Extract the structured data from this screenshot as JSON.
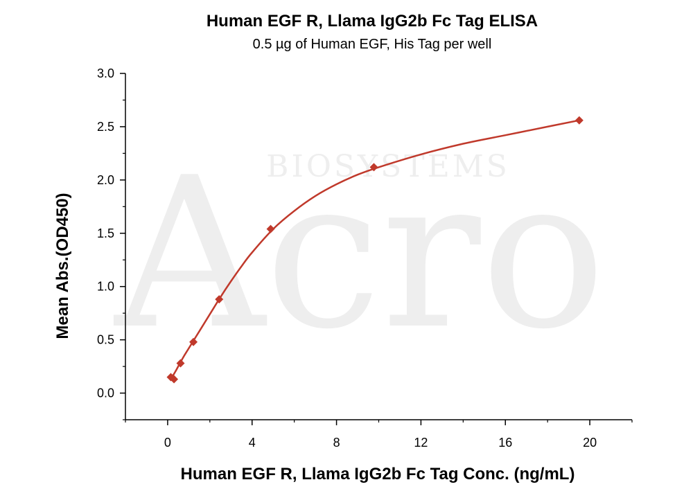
{
  "chart_data": {
    "type": "scatter",
    "title": "Human EGF R, Llama IgG2b Fc Tag ELISA",
    "subtitle": "0.5 µg of Human EGF, His Tag per well",
    "xlabel": "Human EGF R, Llama IgG2b Fc Tag Conc. (ng/mL)",
    "ylabel": "Mean Abs.(OD450)",
    "xlim": [
      -2,
      22
    ],
    "ylim": [
      -0.25,
      3.0
    ],
    "x_ticks": [
      0,
      4,
      8,
      12,
      16,
      20
    ],
    "y_ticks": [
      0.0,
      0.5,
      1.0,
      1.5,
      2.0,
      2.5,
      3.0
    ],
    "x_tick_labels": [
      "0",
      "4",
      "8",
      "12",
      "16",
      "20"
    ],
    "y_tick_labels": [
      "0.0",
      "0.5",
      "1.0",
      "1.5",
      "2.0",
      "2.5",
      "3.0"
    ],
    "grid": false,
    "marker": "diamond",
    "color": "#c0392b",
    "series": [
      {
        "x": [
          0.15,
          0.3,
          0.61,
          1.22,
          2.44,
          4.88,
          9.77,
          19.5
        ],
        "y": [
          0.15,
          0.13,
          0.28,
          0.48,
          0.88,
          1.54,
          2.12,
          2.56
        ]
      }
    ],
    "fit_curve": {
      "x": [
        0.15,
        0.3,
        0.5,
        0.75,
        1.0,
        1.5,
        2.0,
        2.5,
        3.0,
        3.5,
        4.0,
        5.0,
        6.0,
        7.0,
        8.0,
        9.0,
        10.0,
        12.0,
        14.0,
        16.0,
        18.0,
        19.5
      ],
      "y": [
        0.14,
        0.18,
        0.25,
        0.34,
        0.42,
        0.58,
        0.74,
        0.9,
        1.05,
        1.19,
        1.32,
        1.54,
        1.71,
        1.85,
        1.96,
        2.05,
        2.12,
        2.24,
        2.34,
        2.42,
        2.5,
        2.56
      ]
    },
    "watermark": "Acro BIOSYSTEMS"
  }
}
